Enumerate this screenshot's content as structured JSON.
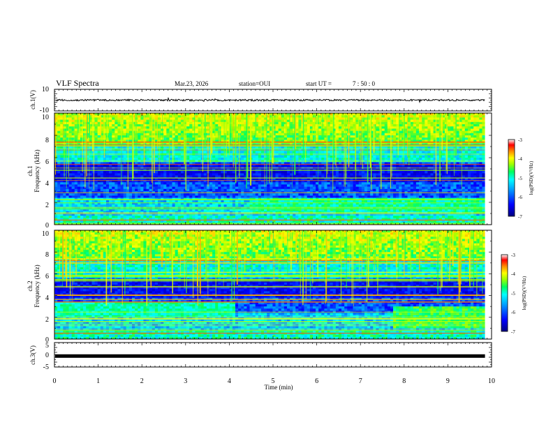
{
  "header": {
    "title": "VLF Spectra",
    "date": "Mar.23, 2026",
    "station": "station=OUI",
    "start_label": "start  UT  =",
    "start_time": "7 : 50 : 0"
  },
  "chart_data": [
    {
      "type": "line",
      "name": "ch1-waveform",
      "ylabel": "ch.1(V)",
      "ylim": [
        -10,
        10
      ],
      "yticks": [
        "10",
        "-10"
      ],
      "baseline": 0,
      "xlim": [
        0,
        9.85
      ]
    },
    {
      "type": "heatmap",
      "name": "ch1-spectrogram",
      "ylabel_line1": "ch.1",
      "ylabel_line2": "Frequency (kHz)",
      "ylim": [
        0,
        10
      ],
      "yticks": [
        "0",
        "2",
        "4",
        "6",
        "8",
        "10"
      ],
      "colorbar": {
        "label": "log(PSD)(V²/Hz)",
        "ticks": [
          "-3",
          "-4",
          "-5",
          "-6",
          "-7"
        ],
        "range": [
          -7,
          -3
        ]
      },
      "xlim": [
        0,
        9.85
      ]
    },
    {
      "type": "heatmap",
      "name": "ch2-spectrogram",
      "ylabel_line1": "ch.2",
      "ylabel_line2": "Frequency (kHz)",
      "ylim": [
        0,
        10
      ],
      "yticks": [
        "0",
        "2",
        "4",
        "6",
        "8",
        "10"
      ],
      "colorbar": {
        "label": "log(PSD)(V²/Hz)",
        "ticks": [
          "-3",
          "-4",
          "-5",
          "-6",
          "-7"
        ],
        "range": [
          -7,
          -3
        ]
      },
      "xlim": [
        0,
        9.85
      ]
    },
    {
      "type": "line",
      "name": "ch3-waveform",
      "ylabel": "ch.3(V)",
      "ylim": [
        -5,
        5
      ],
      "yticks": [
        "5",
        "0",
        "-5"
      ],
      "baseline": -0.5,
      "xlim": [
        0,
        9.85
      ]
    }
  ],
  "x_axis": {
    "label": "Time (min)",
    "range": [
      0,
      10
    ],
    "ticks": [
      "0",
      "1",
      "2",
      "3",
      "4",
      "5",
      "6",
      "7",
      "8",
      "9",
      "10"
    ]
  },
  "colors": {
    "waveform": "#000000",
    "spectrum_background": "#0a1a9e",
    "colormap": [
      "#000080",
      "#0000ff",
      "#00a0ff",
      "#00ffff",
      "#00ff60",
      "#a0ff00",
      "#ffff00",
      "#ff9900",
      "#ff0000",
      "#ffffff"
    ]
  }
}
